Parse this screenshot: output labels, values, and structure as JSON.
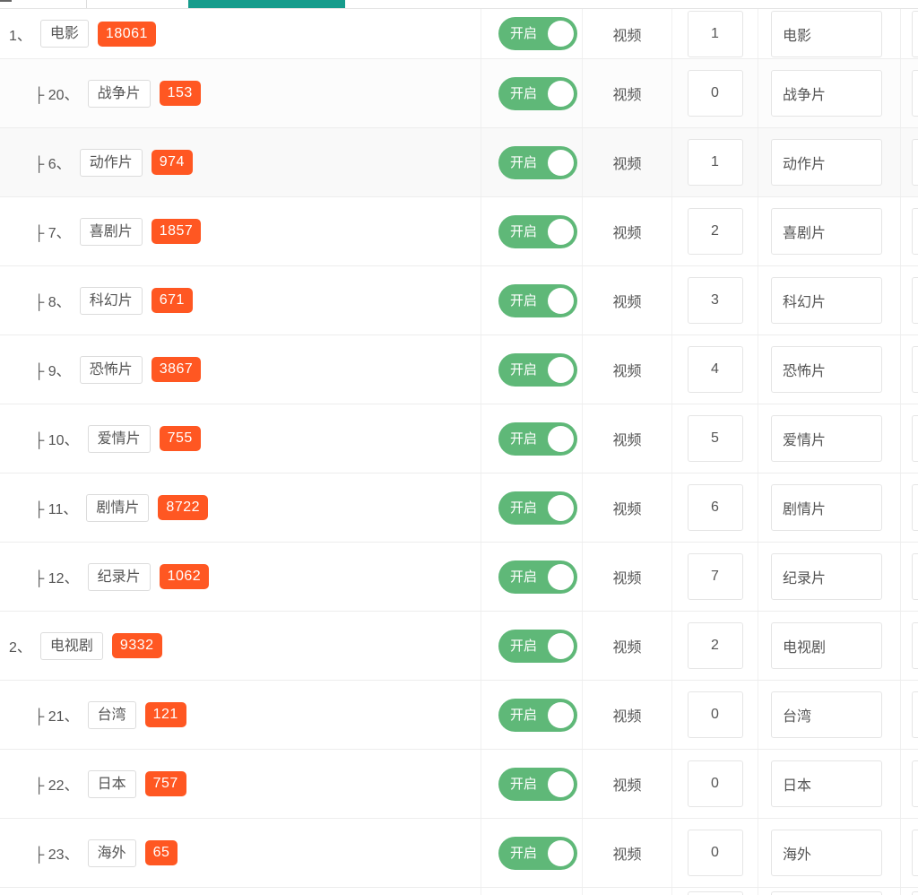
{
  "colors": {
    "toggle_on_green": "#5FB878",
    "badge_orange": "#FF5722",
    "active_tab_teal": "#169C8C"
  },
  "table": {
    "rows": [
      {
        "prefix": "1、",
        "label": "电影",
        "count": "18061",
        "status_label": "开启",
        "type": "视频",
        "sort_value": "1",
        "name_value": "电影",
        "child": false
      },
      {
        "prefix": "├ 20、",
        "label": "战争片",
        "count": "153",
        "status_label": "开启",
        "type": "视频",
        "sort_value": "0",
        "name_value": "战争片",
        "child": true
      },
      {
        "prefix": "├ 6、",
        "label": "动作片",
        "count": "974",
        "status_label": "开启",
        "type": "视频",
        "sort_value": "1",
        "name_value": "动作片",
        "child": true
      },
      {
        "prefix": "├ 7、",
        "label": "喜剧片",
        "count": "1857",
        "status_label": "开启",
        "type": "视频",
        "sort_value": "2",
        "name_value": "喜剧片",
        "child": true
      },
      {
        "prefix": "├ 8、",
        "label": "科幻片",
        "count": "671",
        "status_label": "开启",
        "type": "视频",
        "sort_value": "3",
        "name_value": "科幻片",
        "child": true
      },
      {
        "prefix": "├ 9、",
        "label": "恐怖片",
        "count": "3867",
        "status_label": "开启",
        "type": "视频",
        "sort_value": "4",
        "name_value": "恐怖片",
        "child": true
      },
      {
        "prefix": "├ 10、",
        "label": "爱情片",
        "count": "755",
        "status_label": "开启",
        "type": "视频",
        "sort_value": "5",
        "name_value": "爱情片",
        "child": true
      },
      {
        "prefix": "├ 11、",
        "label": "剧情片",
        "count": "8722",
        "status_label": "开启",
        "type": "视频",
        "sort_value": "6",
        "name_value": "剧情片",
        "child": true
      },
      {
        "prefix": "├ 12、",
        "label": "纪录片",
        "count": "1062",
        "status_label": "开启",
        "type": "视频",
        "sort_value": "7",
        "name_value": "纪录片",
        "child": true
      },
      {
        "prefix": "2、",
        "label": "电视剧",
        "count": "9332",
        "status_label": "开启",
        "type": "视频",
        "sort_value": "2",
        "name_value": "电视剧",
        "child": false
      },
      {
        "prefix": "├ 21、",
        "label": "台湾",
        "count": "121",
        "status_label": "开启",
        "type": "视频",
        "sort_value": "0",
        "name_value": "台湾",
        "child": true
      },
      {
        "prefix": "├ 22、",
        "label": "日本",
        "count": "757",
        "status_label": "开启",
        "type": "视频",
        "sort_value": "0",
        "name_value": "日本",
        "child": true
      },
      {
        "prefix": "├ 23、",
        "label": "海外",
        "count": "65",
        "status_label": "开启",
        "type": "视频",
        "sort_value": "0",
        "name_value": "海外",
        "child": true
      },
      {
        "partial": true,
        "sort_value": "",
        "name_value": ""
      }
    ]
  }
}
